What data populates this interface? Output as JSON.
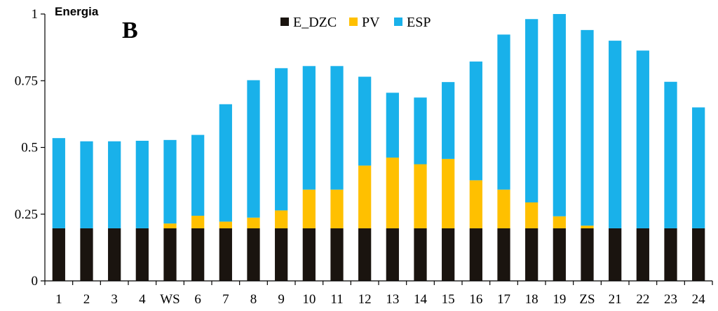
{
  "chart_data": {
    "type": "bar",
    "stacked": true,
    "title": "B",
    "subtitle": "Energia",
    "xlabel": "",
    "ylabel": "",
    "ylim": [
      0,
      1
    ],
    "yticks": [
      0,
      0.25,
      0.5,
      0.75,
      1
    ],
    "ytick_labels": [
      "0",
      "0.25",
      "0.5",
      "0.75",
      "1"
    ],
    "legend_position": "top-center",
    "categories": [
      "1",
      "2",
      "3",
      "4",
      "WS",
      "6",
      "7",
      "8",
      "9",
      "10",
      "11",
      "12",
      "13",
      "14",
      "15",
      "16",
      "17",
      "18",
      "19",
      "ZS",
      "21",
      "22",
      "23",
      "24"
    ],
    "series": [
      {
        "name": "E_DZC",
        "color": "#1a140f",
        "values": [
          0.197,
          0.197,
          0.197,
          0.197,
          0.197,
          0.197,
          0.197,
          0.197,
          0.197,
          0.197,
          0.197,
          0.197,
          0.197,
          0.197,
          0.197,
          0.197,
          0.197,
          0.197,
          0.197,
          0.197,
          0.197,
          0.197,
          0.197,
          0.197
        ]
      },
      {
        "name": "PV",
        "color": "#ffc000",
        "values": [
          0,
          0,
          0,
          0,
          0.018,
          0.047,
          0.025,
          0.04,
          0.067,
          0.145,
          0.145,
          0.235,
          0.265,
          0.24,
          0.26,
          0.18,
          0.145,
          0.097,
          0.045,
          0.01,
          0,
          0,
          0,
          0
        ]
      },
      {
        "name": "ESP",
        "color": "#19b1ea",
        "values": [
          0.338,
          0.326,
          0.326,
          0.328,
          0.313,
          0.303,
          0.44,
          0.515,
          0.533,
          0.463,
          0.463,
          0.333,
          0.243,
          0.25,
          0.288,
          0.445,
          0.581,
          0.687,
          0.758,
          0.733,
          0.703,
          0.666,
          0.549,
          0.453
        ]
      }
    ]
  }
}
